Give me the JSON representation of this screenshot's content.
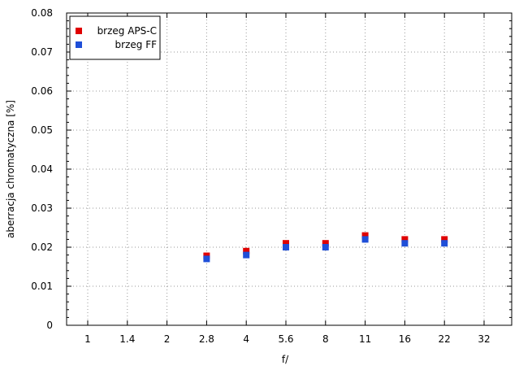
{
  "chart_data": {
    "type": "scatter",
    "title": "",
    "xlabel": "f/",
    "ylabel": "aberracja chromatyczna [%]",
    "categories": [
      "1",
      "1.4",
      "2",
      "2.8",
      "4",
      "5.6",
      "8",
      "11",
      "16",
      "22",
      "32"
    ],
    "ylim": [
      0,
      0.08
    ],
    "yticks": [
      "0",
      "0.01",
      "0.02",
      "0.03",
      "0.04",
      "0.05",
      "0.06",
      "0.07",
      "0.08"
    ],
    "grid": true,
    "legend_position": "top-left",
    "series": [
      {
        "name": "brzeg APS-C",
        "color": "#e00000",
        "points": [
          {
            "x": "2.8",
            "y": 0.0178
          },
          {
            "x": "4",
            "y": 0.019
          },
          {
            "x": "5.6",
            "y": 0.021
          },
          {
            "x": "8",
            "y": 0.021
          },
          {
            "x": "11",
            "y": 0.023
          },
          {
            "x": "16",
            "y": 0.022
          },
          {
            "x": "22",
            "y": 0.022
          }
        ]
      },
      {
        "name": "brzeg FF",
        "color": "#1f4fd8",
        "points": [
          {
            "x": "2.8",
            "y": 0.017
          },
          {
            "x": "4",
            "y": 0.018
          },
          {
            "x": "5.6",
            "y": 0.02
          },
          {
            "x": "8",
            "y": 0.02
          },
          {
            "x": "11",
            "y": 0.022
          },
          {
            "x": "16",
            "y": 0.021
          },
          {
            "x": "22",
            "y": 0.021
          }
        ]
      }
    ]
  }
}
